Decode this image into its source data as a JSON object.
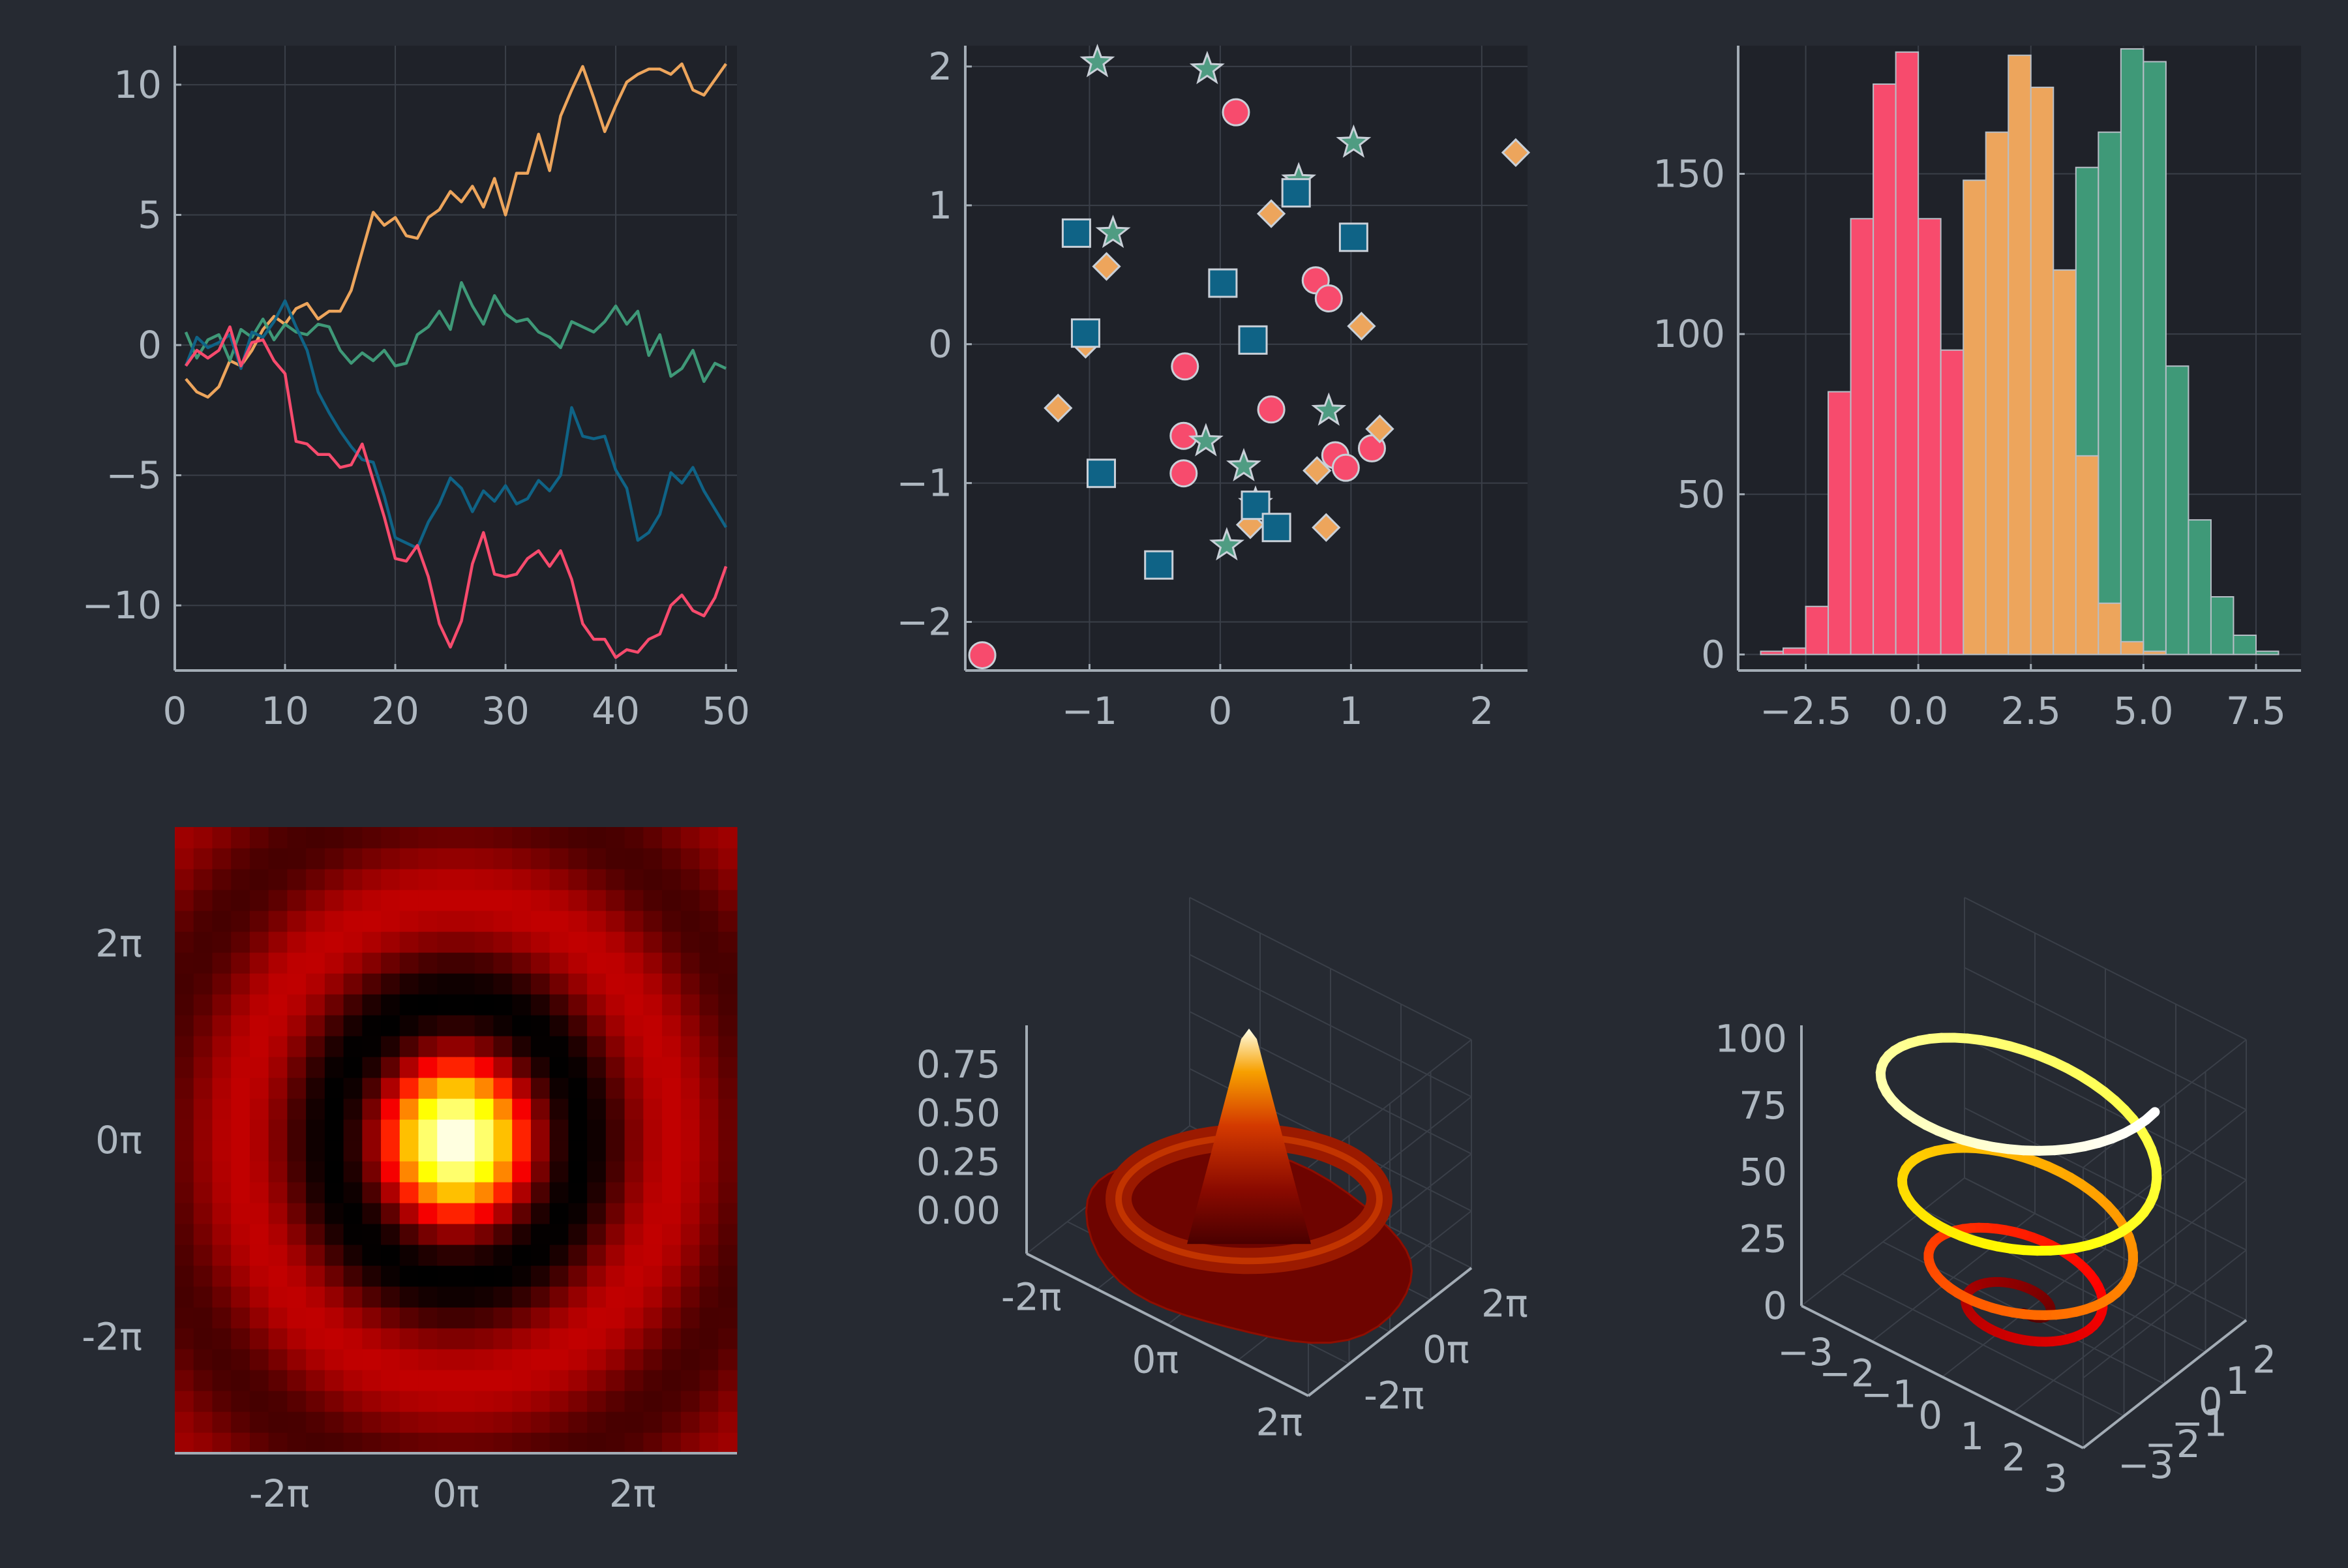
{
  "theme": {
    "background": "#262a32",
    "plot_background": "#1f2229",
    "axis_color": "#a3acb5",
    "grid_color": "#3a3f48",
    "text_color": "#aeb7c0",
    "palette": [
      "#eda55c",
      "#3f9978",
      "#0f6386",
      "#f74b6d"
    ],
    "heat_colormap": "hot"
  },
  "chart_data": [
    {
      "type": "line",
      "grid": true,
      "xlim": [
        0,
        51
      ],
      "ylim": [
        -12.5,
        11.5
      ],
      "xticks": [
        0,
        10,
        20,
        30,
        40,
        50
      ],
      "xtick_labels": [
        "0",
        "10",
        "20",
        "30",
        "40",
        "50"
      ],
      "yticks": [
        -10,
        -5,
        0,
        5,
        10
      ],
      "ytick_labels": [
        "−10",
        "−5",
        "0",
        "5",
        "10"
      ],
      "x": [
        1,
        2,
        3,
        4,
        5,
        6,
        7,
        8,
        9,
        10,
        11,
        12,
        13,
        14,
        15,
        16,
        17,
        18,
        19,
        20,
        21,
        22,
        23,
        24,
        25,
        26,
        27,
        28,
        29,
        30,
        31,
        32,
        33,
        34,
        35,
        36,
        37,
        38,
        39,
        40,
        41,
        42,
        43,
        44,
        45,
        46,
        47,
        48,
        49,
        50
      ],
      "series": [
        {
          "color": "#eda55c",
          "values": [
            -1.3,
            -1.8,
            -2.0,
            -1.6,
            -0.6,
            -0.8,
            -0.2,
            0.6,
            1.1,
            0.8,
            1.4,
            1.6,
            1.0,
            1.3,
            1.3,
            2.1,
            3.6,
            5.1,
            4.6,
            4.9,
            4.2,
            4.1,
            4.9,
            5.2,
            5.9,
            5.5,
            6.1,
            5.3,
            6.4,
            5.0,
            6.6,
            6.6,
            8.1,
            6.7,
            8.8,
            9.8,
            10.7,
            9.5,
            8.2,
            9.2,
            10.1,
            10.4,
            10.6,
            10.6,
            10.4,
            10.8,
            9.8,
            9.6,
            10.2,
            10.8
          ]
        },
        {
          "color": "#3f9978",
          "values": [
            0.5,
            -0.5,
            0.2,
            0.4,
            -0.6,
            0.6,
            0.3,
            1.0,
            0.2,
            0.8,
            0.5,
            0.4,
            0.8,
            0.7,
            -0.2,
            -0.7,
            -0.3,
            -0.6,
            -0.2,
            -0.8,
            -0.7,
            0.4,
            0.7,
            1.3,
            0.6,
            2.4,
            1.5,
            0.8,
            1.9,
            1.2,
            0.9,
            1.0,
            0.5,
            0.3,
            -0.1,
            0.9,
            0.7,
            0.5,
            0.9,
            1.5,
            0.8,
            1.3,
            -0.4,
            0.4,
            -1.2,
            -0.9,
            -0.2,
            -1.4,
            -0.7,
            -0.9
          ]
        },
        {
          "color": "#0f6386",
          "values": [
            -0.8,
            0.3,
            -0.1,
            0.1,
            0.4,
            -0.9,
            0.5,
            0.3,
            0.9,
            1.7,
            0.7,
            -0.2,
            -1.8,
            -2.6,
            -3.3,
            -3.9,
            -4.4,
            -4.5,
            -5.8,
            -7.4,
            -7.6,
            -7.8,
            -6.8,
            -6.1,
            -5.1,
            -5.5,
            -6.4,
            -5.6,
            -6.0,
            -5.4,
            -6.1,
            -5.9,
            -5.2,
            -5.6,
            -5.0,
            -2.4,
            -3.5,
            -3.6,
            -3.5,
            -4.8,
            -5.5,
            -7.5,
            -7.2,
            -6.5,
            -4.9,
            -5.3,
            -4.7,
            -5.6,
            -6.3,
            -7.0
          ]
        },
        {
          "color": "#f74b6d",
          "values": [
            -0.8,
            -0.2,
            -0.5,
            -0.2,
            0.7,
            -0.8,
            0.1,
            0.2,
            -0.6,
            -1.1,
            -3.7,
            -3.8,
            -4.2,
            -4.2,
            -4.7,
            -4.6,
            -3.8,
            -5.2,
            -6.6,
            -8.2,
            -8.3,
            -7.7,
            -8.9,
            -10.7,
            -11.6,
            -10.6,
            -8.4,
            -7.2,
            -8.8,
            -8.9,
            -8.8,
            -8.2,
            -7.9,
            -8.5,
            -7.9,
            -9.0,
            -10.7,
            -11.3,
            -11.3,
            -12.0,
            -11.7,
            -11.8,
            -11.3,
            -11.1,
            -10.0,
            -9.6,
            -10.2,
            -10.4,
            -9.7,
            -8.5
          ]
        }
      ]
    },
    {
      "type": "scatter",
      "grid": true,
      "xlim": [
        -1.95,
        2.35
      ],
      "ylim": [
        -2.35,
        2.15
      ],
      "xticks": [
        -1,
        0,
        1,
        2
      ],
      "xtick_labels": [
        "−1",
        "0",
        "1",
        "2"
      ],
      "yticks": [
        -2,
        -1,
        0,
        1,
        2
      ],
      "ytick_labels": [
        "−2",
        "−1",
        "0",
        "1",
        "2"
      ],
      "series": [
        {
          "marker": "circle",
          "color": "#f74b6d",
          "points": [
            [
              0.12,
              1.67
            ],
            [
              0.73,
              0.46
            ],
            [
              0.83,
              0.33
            ],
            [
              -0.27,
              -0.16
            ],
            [
              0.39,
              -0.47
            ],
            [
              -0.28,
              -0.66
            ],
            [
              0.88,
              -0.8
            ],
            [
              1.16,
              -0.75
            ],
            [
              0.96,
              -0.89
            ],
            [
              -0.28,
              -0.93
            ],
            [
              -1.82,
              -2.24
            ]
          ]
        },
        {
          "marker": "star",
          "color": "#4f9c82",
          "points": [
            [
              -0.94,
              2.03
            ],
            [
              -0.1,
              1.98
            ],
            [
              1.02,
              1.45
            ],
            [
              -0.82,
              0.8
            ],
            [
              0.6,
              1.18
            ],
            [
              0.83,
              -0.48
            ],
            [
              -0.11,
              -0.7
            ],
            [
              0.18,
              -0.88
            ],
            [
              0.05,
              -1.45
            ],
            [
              0.27,
              -1.15
            ]
          ]
        },
        {
          "marker": "diamond",
          "color": "#eda55c",
          "points": [
            [
              2.26,
              1.38
            ],
            [
              0.39,
              0.94
            ],
            [
              -0.87,
              0.56
            ],
            [
              1.08,
              0.13
            ],
            [
              -1.24,
              -0.46
            ],
            [
              -1.03,
              0.0
            ],
            [
              1.22,
              -0.61
            ],
            [
              0.74,
              -0.91
            ],
            [
              0.81,
              -1.32
            ],
            [
              0.23,
              -1.3
            ]
          ]
        },
        {
          "marker": "square",
          "color": "#0f6386",
          "points": [
            [
              -1.1,
              0.8
            ],
            [
              0.58,
              1.09
            ],
            [
              1.02,
              0.77
            ],
            [
              0.02,
              0.44
            ],
            [
              -1.03,
              0.08
            ],
            [
              0.25,
              0.03
            ],
            [
              -0.91,
              -0.93
            ],
            [
              0.27,
              -1.16
            ],
            [
              0.43,
              -1.32
            ],
            [
              -0.47,
              -1.59
            ]
          ]
        }
      ]
    },
    {
      "type": "bar",
      "subtype": "histogram",
      "grid": true,
      "xlim": [
        -4.0,
        8.5
      ],
      "ylim": [
        -5,
        190
      ],
      "xticks": [
        -2.5,
        0.0,
        2.5,
        5.0,
        7.5
      ],
      "xtick_labels": [
        "−2.5",
        "0.0",
        "2.5",
        "5.0",
        "7.5"
      ],
      "yticks": [
        0,
        50,
        100,
        150
      ],
      "ytick_labels": [
        "0",
        "50",
        "100",
        "150"
      ],
      "bin_edges": [
        -3.5,
        -3.0,
        -2.5,
        -2.0,
        -1.5,
        -1.0,
        -0.5,
        0.0,
        0.5,
        1.0,
        1.5,
        2.0,
        2.5,
        3.0,
        3.5,
        4.0,
        4.5,
        5.0,
        5.5,
        6.0,
        6.5,
        7.0,
        7.5,
        8.0
      ],
      "series": [
        {
          "color": "#3f9978",
          "values": [
            0,
            0,
            0,
            0,
            0,
            0,
            0,
            0,
            0,
            0,
            0,
            2,
            20,
            72,
            152,
            163,
            189,
            185,
            90,
            42,
            18,
            6,
            1
          ]
        },
        {
          "color": "#eda55c",
          "values": [
            0,
            0,
            0,
            2,
            4,
            12,
            20,
            47,
            92,
            148,
            163,
            187,
            177,
            120,
            62,
            16,
            4,
            1,
            0,
            0,
            0,
            0,
            0
          ]
        },
        {
          "color": "#f74b6d",
          "values": [
            1,
            2,
            15,
            82,
            136,
            178,
            188,
            136,
            95,
            0,
            0,
            0,
            0,
            0,
            0,
            0,
            0,
            0,
            0,
            0,
            0,
            0,
            0
          ]
        }
      ]
    },
    {
      "type": "heatmap",
      "colormap": "hot",
      "function": "sin(r)/r, r = sqrt(x^2 + y^2)",
      "grid_size": 30,
      "xlim": [
        -10.0,
        10.0
      ],
      "ylim": [
        -10.0,
        10.0
      ],
      "xticks": [
        -6.2832,
        0,
        6.2832
      ],
      "xtick_labels": [
        "-2π",
        "0π",
        "2π"
      ],
      "yticks": [
        -6.2832,
        0,
        6.2832
      ],
      "ytick_labels": [
        "-2π",
        "0π",
        "2π"
      ]
    },
    {
      "type": "surface",
      "colormap": "hot",
      "function": "sin(r)/r",
      "zticks": [
        0.0,
        0.25,
        0.5,
        0.75
      ],
      "ztick_labels": [
        "0.00",
        "0.25",
        "0.50",
        "0.75"
      ],
      "xtick_labels": [
        "-2π",
        "0π",
        "2π"
      ],
      "ytick_labels": [
        "-2π",
        "0π",
        "2π"
      ]
    },
    {
      "type": "line",
      "subtype": "3d-spiral",
      "colormap": "hot",
      "z": "t^2, 0 ≤ t ≤ 10",
      "x": "√t · cos(2πt/2.5)",
      "y": "√t · sin(2πt/2.5)",
      "zticks": [
        0,
        25,
        50,
        75,
        100
      ],
      "ztick_labels": [
        "0",
        "25",
        "50",
        "75",
        "100"
      ],
      "xtick_labels": [
        "−3",
        "−2",
        "−1",
        "0",
        "1",
        "2",
        "3"
      ],
      "ytick_labels": [
        "−3",
        "−2",
        "−1",
        "0",
        "1",
        "2"
      ]
    }
  ]
}
